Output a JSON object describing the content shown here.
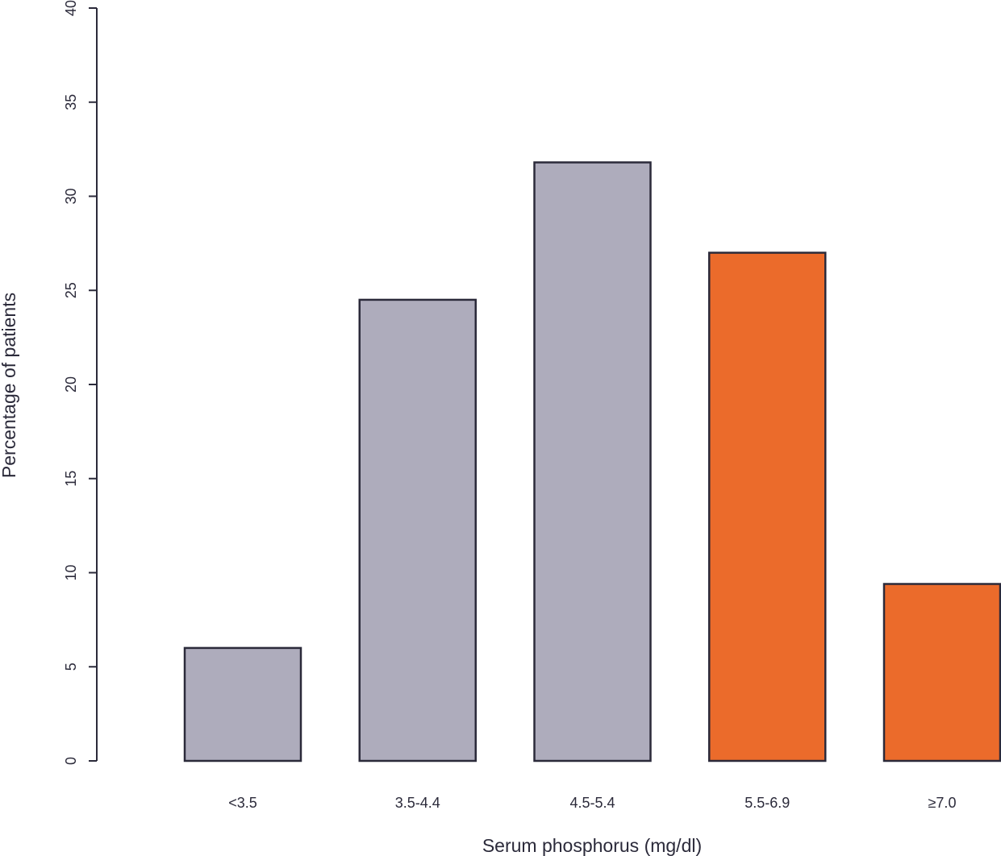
{
  "chart_data": {
    "type": "bar",
    "title": "",
    "xlabel": "Serum phosphorus (mg/dl)",
    "ylabel": "Percentage of patients",
    "categories": [
      "<3.5",
      "3.5-4.4",
      "4.5-5.4",
      "5.5-6.9",
      "≥7.0"
    ],
    "values": [
      6.0,
      24.5,
      31.8,
      27.0,
      9.4
    ],
    "colors": [
      "#aeacbc",
      "#aeacbc",
      "#aeacbc",
      "#eb6b2b",
      "#eb6b2b"
    ],
    "ylim": [
      0,
      40
    ],
    "yticks": [
      "0",
      "5",
      "10",
      "15",
      "20",
      "25",
      "30",
      "35",
      "40"
    ],
    "grid": false,
    "legend": "none"
  },
  "style": {
    "axis_color": "#2b2a3a",
    "bar_outline": "#2b2a3a"
  }
}
